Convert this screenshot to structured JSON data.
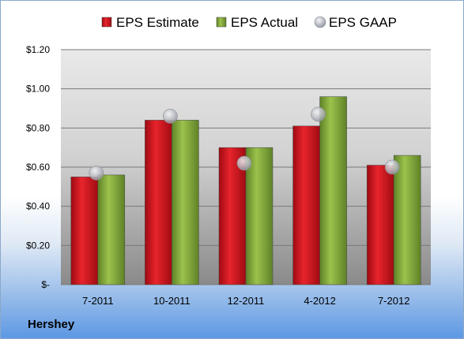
{
  "company": "Hershey",
  "chart_data": {
    "type": "bar",
    "categories": [
      "7-2011",
      "10-2011",
      "12-2011",
      "4-2012",
      "7-2012"
    ],
    "series": [
      {
        "name": "EPS Estimate",
        "type": "bar",
        "color": "#d0111b",
        "values": [
          0.55,
          0.84,
          0.7,
          0.81,
          0.61
        ]
      },
      {
        "name": "EPS Actual",
        "type": "bar",
        "color": "#8db53e",
        "values": [
          0.56,
          0.84,
          0.7,
          0.96,
          0.66
        ]
      },
      {
        "name": "EPS GAAP",
        "type": "marker",
        "color": "#b8bcc4",
        "values": [
          0.57,
          0.86,
          0.62,
          0.87,
          0.6
        ]
      }
    ],
    "ylim": [
      0,
      1.2
    ],
    "yticks": [
      {
        "value": 0,
        "label": "$-"
      },
      {
        "value": 0.2,
        "label": "$0.20"
      },
      {
        "value": 0.4,
        "label": "$0.40"
      },
      {
        "value": 0.6,
        "label": "$0.60"
      },
      {
        "value": 0.8,
        "label": "$0.80"
      },
      {
        "value": 1.0,
        "label": "$1.00"
      },
      {
        "value": 1.2,
        "label": "$1.20"
      }
    ],
    "grid": true,
    "legend": "top"
  }
}
